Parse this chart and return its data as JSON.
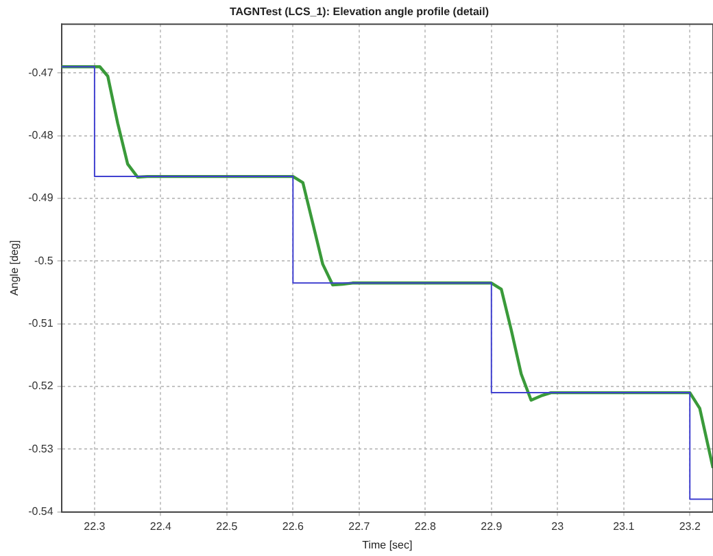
{
  "chart_data": {
    "type": "line",
    "title": "TAGNTest (LCS_1): Elevation angle profile (detail)",
    "xlabel": "Time [sec]",
    "ylabel": "Angle [deg]",
    "series": [
      {
        "type": "step",
        "color": "#4040d0",
        "x": [
          22.25,
          22.3,
          22.6,
          22.9,
          23.2,
          23.235
        ],
        "values": [
          -0.469,
          -0.4865,
          -0.5035,
          -0.521,
          -0.538,
          -0.538
        ]
      },
      {
        "color": "#3a9a3a",
        "x": [
          22.25,
          22.308,
          22.32,
          22.335,
          22.35,
          22.365,
          22.38,
          22.6,
          22.615,
          22.63,
          22.645,
          22.66,
          22.675,
          22.69,
          22.9,
          22.915,
          22.93,
          22.945,
          22.96,
          22.975,
          22.99,
          23.2,
          23.215,
          23.235
        ],
        "values": [
          -0.469,
          -0.469,
          -0.4705,
          -0.478,
          -0.4845,
          -0.4866,
          -0.4865,
          -0.4865,
          -0.4875,
          -0.494,
          -0.5005,
          -0.5038,
          -0.5037,
          -0.5035,
          -0.5035,
          -0.5045,
          -0.511,
          -0.518,
          -0.5222,
          -0.5215,
          -0.521,
          -0.521,
          -0.5235,
          -0.533
        ]
      }
    ],
    "xlim": [
      22.25,
      23.235
    ],
    "xticks": [
      22.3,
      22.4,
      22.5,
      22.6,
      22.7,
      22.8,
      22.9,
      23,
      23.1,
      23.2
    ],
    "ylim": [
      -0.54,
      -0.4622
    ],
    "yticks": [
      -0.54,
      -0.53,
      -0.52,
      -0.51,
      -0.5,
      -0.49,
      -0.48,
      -0.47
    ],
    "grid": true,
    "line_style": "solid",
    "marker": "none"
  }
}
